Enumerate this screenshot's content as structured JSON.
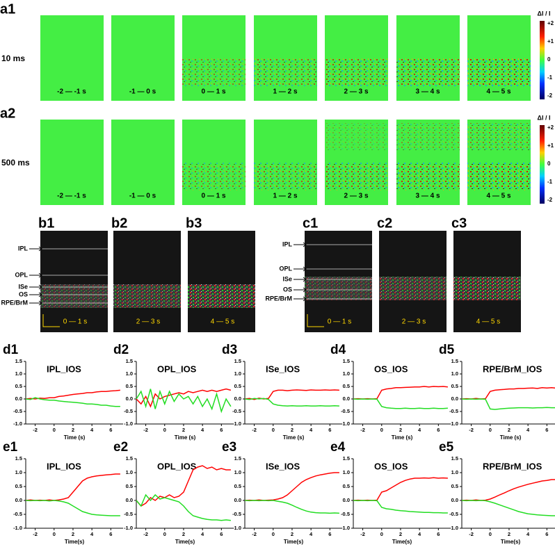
{
  "figure": {
    "panels_a": {
      "rows": [
        {
          "label": "a1",
          "condition": "10 ms"
        },
        {
          "label": "a2",
          "condition": "500 ms"
        }
      ],
      "windows": [
        "-2 — -1 s",
        "-1 — 0 s",
        "0 — 1 s",
        "1 — 2 s",
        "2 — 3 s",
        "3 — 4 s",
        "4 — 5 s"
      ],
      "colorbar": {
        "title": "ΔI / I",
        "ticks": [
          "+2",
          "+1",
          "0",
          "-1",
          "-2"
        ]
      }
    },
    "panels_b": {
      "labels": [
        "b1",
        "b2",
        "b3"
      ],
      "windows": [
        "0 — 1 s",
        "2 — 3 s",
        "4 — 5 s"
      ],
      "layers": [
        "IPL",
        "OPL",
        "ISe",
        "OS",
        "RPE/BrM"
      ]
    },
    "panels_c": {
      "labels": [
        "c1",
        "c2",
        "c3"
      ],
      "windows": [
        "0 — 1 s",
        "2 — 3 s",
        "4 — 5 s"
      ],
      "layers": [
        "IPL",
        "OPL",
        "ISe",
        "OS",
        "RPE/BrM"
      ]
    }
  },
  "chart_data": [
    {
      "type": "line",
      "panel": "d1",
      "title": "IPL_IOS",
      "x_label": "Time (s)",
      "x": [
        -3,
        -2.5,
        -2,
        -1.5,
        -1,
        -0.5,
        0,
        0.5,
        1,
        1.5,
        2,
        2.5,
        3,
        3.5,
        4,
        4.5,
        5,
        5.5,
        6,
        6.5,
        7
      ],
      "series": [
        {
          "color": "#ff0000",
          "values": [
            0,
            0.02,
            0,
            0.03,
            0.02,
            0.05,
            0.05,
            0.1,
            0.12,
            0.15,
            0.18,
            0.2,
            0.22,
            0.25,
            0.25,
            0.28,
            0.3,
            0.3,
            0.32,
            0.33,
            0.35
          ]
        },
        {
          "color": "#22dd22",
          "values": [
            0,
            -0.02,
            0.05,
            0,
            -0.03,
            -0.05,
            -0.05,
            -0.08,
            -0.1,
            -0.12,
            -0.13,
            -0.15,
            -0.17,
            -0.2,
            -0.2,
            -0.22,
            -0.25,
            -0.25,
            -0.28,
            -0.3,
            -0.3
          ]
        }
      ],
      "xlim": [
        -3,
        7.3
      ],
      "ylim": [
        -1,
        1.5
      ],
      "xticks": [
        -2,
        0,
        2,
        4,
        6
      ],
      "yticks": [
        {
          "value": -1,
          "label": "-1.0"
        },
        -0.5,
        {
          "value": 0,
          "label": "0.0"
        },
        0.5,
        {
          "value": 1,
          "label": "1.0"
        },
        1.5
      ]
    },
    {
      "type": "line",
      "panel": "d2",
      "title": "OPL_IOS",
      "x_label": "Time (s)",
      "x": [
        -3,
        -2.5,
        -2,
        -1.5,
        -1,
        -0.5,
        0,
        0.5,
        1,
        1.5,
        2,
        2.5,
        3,
        3.5,
        4,
        4.5,
        5,
        5.5,
        6,
        6.5,
        7
      ],
      "series": [
        {
          "color": "#ff0000",
          "values": [
            0,
            -0.2,
            0.1,
            -0.3,
            0.2,
            0,
            0.1,
            0.15,
            0.2,
            0.25,
            0.2,
            0.3,
            0.25,
            0.3,
            0.35,
            0.3,
            0.35,
            0.3,
            0.35,
            0.4,
            0.35
          ]
        },
        {
          "color": "#22dd22",
          "values": [
            0,
            0.3,
            -0.3,
            0.4,
            -0.4,
            0.3,
            -0.2,
            0.3,
            -0.1,
            0.2,
            0,
            0.1,
            -0.2,
            0.1,
            -0.3,
            0,
            -0.4,
            0.2,
            -0.5,
            0,
            -0.3
          ]
        }
      ],
      "xlim": [
        -3,
        7.3
      ],
      "ylim": [
        -1,
        1.5
      ],
      "xticks": [
        -2,
        0,
        2,
        4,
        6
      ],
      "yticks": [
        {
          "value": -1,
          "label": "-1.0"
        },
        -0.5,
        {
          "value": 0,
          "label": "0.0"
        },
        0.5,
        {
          "value": 1,
          "label": "1.0"
        },
        1.5
      ]
    },
    {
      "type": "line",
      "panel": "d3",
      "title": "ISe_IOS",
      "x_label": "Time (s)",
      "x": [
        -3,
        -2.5,
        -2,
        -1.5,
        -1,
        -0.5,
        0,
        0.5,
        1,
        1.5,
        2,
        2.5,
        3,
        3.5,
        4,
        4.5,
        5,
        5.5,
        6,
        6.5,
        7
      ],
      "series": [
        {
          "color": "#ff0000",
          "values": [
            0,
            0.02,
            -0.02,
            0.03,
            0,
            0.02,
            0.3,
            0.35,
            0.35,
            0.33,
            0.35,
            0.36,
            0.35,
            0.34,
            0.36,
            0.35,
            0.35,
            0.36,
            0.35,
            0.36,
            0.35
          ]
        },
        {
          "color": "#22dd22",
          "values": [
            0,
            -0.02,
            0.02,
            0,
            0.02,
            -0.02,
            -0.2,
            -0.25,
            -0.27,
            -0.28,
            -0.27,
            -0.28,
            -0.28,
            -0.27,
            -0.28,
            -0.28,
            -0.27,
            -0.28,
            -0.28,
            -0.27,
            -0.28
          ]
        }
      ],
      "xlim": [
        -3,
        7.3
      ],
      "ylim": [
        -1,
        1.5
      ],
      "xticks": [
        -2,
        0,
        2,
        4,
        6
      ],
      "yticks": [
        {
          "value": -1,
          "label": "-1.0"
        },
        -0.5,
        {
          "value": 0,
          "label": "0.0"
        },
        0.5,
        {
          "value": 1,
          "label": "1.0"
        },
        1.5
      ]
    },
    {
      "type": "line",
      "panel": "d4",
      "title": "OS_IOS",
      "x_label": "Time (s)",
      "x": [
        -3,
        -2.5,
        -2,
        -1.5,
        -1,
        -0.5,
        0,
        0.5,
        1,
        1.5,
        2,
        2.5,
        3,
        3.5,
        4,
        4.5,
        5,
        5.5,
        6,
        6.5,
        7
      ],
      "series": [
        {
          "color": "#ff0000",
          "values": [
            0,
            0.01,
            0,
            0.01,
            0,
            0.01,
            0.35,
            0.4,
            0.42,
            0.45,
            0.45,
            0.46,
            0.47,
            0.48,
            0.48,
            0.5,
            0.48,
            0.5,
            0.49,
            0.5,
            0.48
          ]
        },
        {
          "color": "#22dd22",
          "values": [
            0,
            -0.01,
            0,
            -0.01,
            0,
            -0.01,
            -0.3,
            -0.35,
            -0.37,
            -0.38,
            -0.38,
            -0.37,
            -0.38,
            -0.38,
            -0.37,
            -0.38,
            -0.38,
            -0.37,
            -0.38,
            -0.38,
            -0.37
          ]
        }
      ],
      "xlim": [
        -3,
        7.3
      ],
      "ylim": [
        -1,
        1.5
      ],
      "xticks": [
        -2,
        0,
        2,
        4,
        6
      ],
      "yticks": [
        {
          "value": -1,
          "label": "-1.0"
        },
        -0.5,
        {
          "value": 0,
          "label": "0.0"
        },
        0.5,
        {
          "value": 1,
          "label": "1.0"
        },
        1.5
      ]
    },
    {
      "type": "line",
      "panel": "d5",
      "title": "RPE/BrM_IOS",
      "x_label": "Time (s)",
      "x": [
        -3,
        -2.5,
        -2,
        -1.5,
        -1,
        -0.5,
        0,
        0.5,
        1,
        1.5,
        2,
        2.5,
        3,
        3.5,
        4,
        4.5,
        5,
        5.5,
        6,
        6.5,
        7
      ],
      "series": [
        {
          "color": "#ff0000",
          "values": [
            0,
            0.01,
            0,
            0.02,
            0,
            0.01,
            0.3,
            0.35,
            0.37,
            0.38,
            0.4,
            0.4,
            0.42,
            0.42,
            0.43,
            0.44,
            0.42,
            0.45,
            0.44,
            0.45,
            0.43
          ]
        },
        {
          "color": "#22dd22",
          "values": [
            0,
            -0.01,
            0,
            -0.01,
            0,
            -0.01,
            -0.4,
            -0.42,
            -0.4,
            -0.38,
            -0.37,
            -0.36,
            -0.35,
            -0.35,
            -0.35,
            -0.36,
            -0.35,
            -0.35,
            -0.34,
            -0.35,
            -0.35
          ]
        }
      ],
      "xlim": [
        -3,
        7.3
      ],
      "ylim": [
        -1,
        1.5
      ],
      "xticks": [
        -2,
        0,
        2,
        4,
        6
      ],
      "yticks": [
        {
          "value": -1,
          "label": "-1.0"
        },
        -0.5,
        {
          "value": 0,
          "label": "0.0"
        },
        0.5,
        {
          "value": 1,
          "label": "1.0"
        },
        1.5
      ]
    },
    {
      "type": "line",
      "panel": "e1",
      "title": "IPL_IOS",
      "x_label": "Time(s)",
      "x": [
        -3,
        -2.5,
        -2,
        -1.5,
        -1,
        -0.5,
        0,
        0.5,
        1,
        1.5,
        2,
        2.5,
        3,
        3.5,
        4,
        4.5,
        5,
        5.5,
        6,
        6.5,
        7
      ],
      "series": [
        {
          "color": "#ff0000",
          "values": [
            0,
            0.02,
            0,
            0.01,
            0,
            0.02,
            0,
            0.02,
            0.05,
            0.1,
            0.3,
            0.5,
            0.7,
            0.8,
            0.85,
            0.88,
            0.9,
            0.92,
            0.93,
            0.95,
            0.95
          ]
        },
        {
          "color": "#22dd22",
          "values": [
            0,
            -0.01,
            0,
            -0.01,
            0,
            -0.02,
            0,
            -0.02,
            -0.05,
            -0.1,
            -0.2,
            -0.3,
            -0.4,
            -0.45,
            -0.5,
            -0.52,
            -0.53,
            -0.54,
            -0.55,
            -0.55,
            -0.55
          ]
        }
      ],
      "xlim": [
        -3,
        7.3
      ],
      "ylim": [
        -1,
        1.5
      ],
      "xticks": [
        -2,
        0,
        2,
        4,
        6
      ],
      "yticks": [
        {
          "value": -1,
          "label": "-1.0"
        },
        -0.5,
        {
          "value": 0,
          "label": "0.0"
        },
        0.5,
        {
          "value": 1,
          "label": "1.0"
        },
        1.5
      ]
    },
    {
      "type": "line",
      "panel": "e2",
      "title": "OPL_IOS",
      "x_label": "Time(s)",
      "x": [
        -3,
        -2.5,
        -2,
        -1.5,
        -1,
        -0.5,
        0,
        0.5,
        1,
        1.5,
        2,
        2.5,
        3,
        3.5,
        4,
        4.5,
        5,
        5.5,
        6,
        6.5,
        7
      ],
      "series": [
        {
          "color": "#ff0000",
          "values": [
            0,
            -0.2,
            -0.1,
            0.1,
            0,
            0.15,
            0.1,
            0.2,
            0.1,
            0.15,
            0.3,
            0.7,
            1.1,
            1.2,
            1.25,
            1.15,
            1.2,
            1.1,
            1.15,
            1.1,
            1.1
          ]
        },
        {
          "color": "#22dd22",
          "values": [
            0,
            -0.2,
            0.2,
            0,
            0.2,
            0.05,
            0.1,
            0.05,
            0,
            -0.05,
            -0.2,
            -0.4,
            -0.55,
            -0.6,
            -0.65,
            -0.68,
            -0.7,
            -0.7,
            -0.72,
            -0.7,
            -0.72
          ]
        }
      ],
      "xlim": [
        -3,
        7.3
      ],
      "ylim": [
        -1,
        1.5
      ],
      "xticks": [
        -2,
        0,
        2,
        4,
        6
      ],
      "yticks": [
        {
          "value": -1,
          "label": "-1.0"
        },
        -0.5,
        {
          "value": 0,
          "label": "0.0"
        },
        0.5,
        {
          "value": 1,
          "label": "1.0"
        },
        1.5
      ]
    },
    {
      "type": "line",
      "panel": "e3",
      "title": "ISe_IOS",
      "x_label": "Time(s)",
      "x": [
        -3,
        -2.5,
        -2,
        -1.5,
        -1,
        -0.5,
        0,
        0.5,
        1,
        1.5,
        2,
        2.5,
        3,
        3.5,
        4,
        4.5,
        5,
        5.5,
        6,
        6.5,
        7
      ],
      "series": [
        {
          "color": "#ff0000",
          "values": [
            0,
            0.01,
            0,
            0.02,
            0,
            0.01,
            0.02,
            0.05,
            0.1,
            0.2,
            0.35,
            0.5,
            0.65,
            0.75,
            0.82,
            0.88,
            0.92,
            0.95,
            0.98,
            1,
            1
          ]
        },
        {
          "color": "#22dd22",
          "values": [
            0,
            -0.01,
            0,
            -0.01,
            0,
            -0.01,
            0,
            -0.03,
            -0.06,
            -0.1,
            -0.17,
            -0.25,
            -0.32,
            -0.38,
            -0.42,
            -0.44,
            -0.45,
            -0.45,
            -0.46,
            -0.45,
            -0.46
          ]
        }
      ],
      "xlim": [
        -3,
        7.3
      ],
      "ylim": [
        -1,
        1.5
      ],
      "xticks": [
        -2,
        0,
        2,
        4,
        6
      ],
      "yticks": [
        {
          "value": -1,
          "label": "-1.0"
        },
        -0.5,
        {
          "value": 0,
          "label": "0.0"
        },
        0.5,
        {
          "value": 1,
          "label": "1.0"
        },
        1.5
      ]
    },
    {
      "type": "line",
      "panel": "e4",
      "title": "OS_IOS",
      "x_label": "Time(s)",
      "x": [
        -3,
        -2.5,
        -2,
        -1.5,
        -1,
        -0.5,
        0,
        0.5,
        1,
        1.5,
        2,
        2.5,
        3,
        3.5,
        4,
        4.5,
        5,
        5.5,
        6,
        6.5,
        7
      ],
      "series": [
        {
          "color": "#ff0000",
          "values": [
            0,
            0.01,
            0,
            0.01,
            0,
            0.01,
            0.3,
            0.35,
            0.45,
            0.55,
            0.65,
            0.72,
            0.77,
            0.8,
            0.8,
            0.81,
            0.8,
            0.82,
            0.8,
            0.81,
            0.8
          ]
        },
        {
          "color": "#22dd22",
          "values": [
            0,
            -0.01,
            0,
            -0.01,
            0,
            -0.01,
            -0.25,
            -0.3,
            -0.32,
            -0.35,
            -0.37,
            -0.38,
            -0.4,
            -0.41,
            -0.42,
            -0.43,
            -0.43,
            -0.44,
            -0.44,
            -0.45,
            -0.45
          ]
        }
      ],
      "xlim": [
        -3,
        7.3
      ],
      "ylim": [
        -1,
        1.5
      ],
      "xticks": [
        -2,
        0,
        2,
        4,
        6
      ],
      "yticks": [
        {
          "value": -1,
          "label": "-1.0"
        },
        -0.5,
        {
          "value": 0,
          "label": "0.0"
        },
        0.5,
        {
          "value": 1,
          "label": "1.0"
        },
        1.5
      ]
    },
    {
      "type": "line",
      "panel": "e5",
      "title": "RPE/BrM_IOS",
      "x_label": "Time(s)",
      "x": [
        -3,
        -2.5,
        -2,
        -1.5,
        -1,
        -0.5,
        0,
        0.5,
        1,
        1.5,
        2,
        2.5,
        3,
        3.5,
        4,
        4.5,
        5,
        5.5,
        6,
        6.5,
        7
      ],
      "series": [
        {
          "color": "#ff0000",
          "values": [
            0,
            0.01,
            0,
            0.02,
            0,
            0.01,
            0.05,
            0.12,
            0.2,
            0.27,
            0.35,
            0.42,
            0.48,
            0.53,
            0.58,
            0.62,
            0.66,
            0.7,
            0.72,
            0.75,
            0.75
          ]
        },
        {
          "color": "#22dd22",
          "values": [
            0,
            -0.01,
            0,
            -0.01,
            0,
            -0.01,
            -0.05,
            -0.1,
            -0.16,
            -0.22,
            -0.28,
            -0.34,
            -0.4,
            -0.44,
            -0.48,
            -0.5,
            -0.52,
            -0.53,
            -0.54,
            -0.55,
            -0.55
          ]
        }
      ],
      "xlim": [
        -3,
        7.3
      ],
      "ylim": [
        -1,
        1.5
      ],
      "xticks": [
        -2,
        0,
        2,
        4,
        6
      ],
      "yticks": [
        {
          "value": -1,
          "label": "-1.0"
        },
        -0.5,
        {
          "value": 0,
          "label": "0.0"
        },
        0.5,
        {
          "value": 1,
          "label": "1.0"
        },
        1.5
      ]
    }
  ]
}
